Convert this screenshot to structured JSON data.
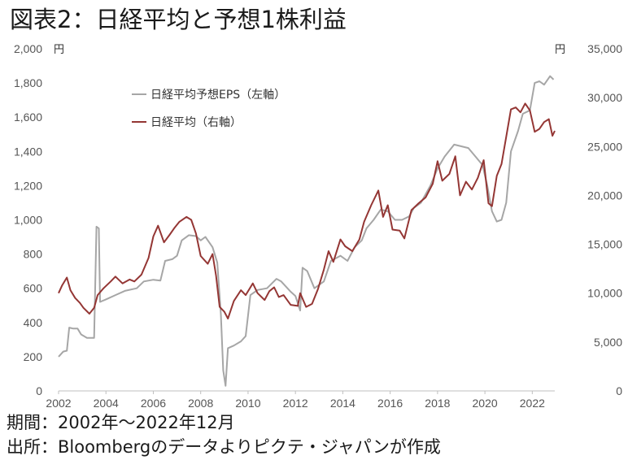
{
  "title": "図表2：日経平均と予想1株利益",
  "footer": {
    "period": "期間：2002年～2022年12月",
    "source": "出所：Bloombergのデータよりピクテ・ジャパンが作成"
  },
  "colors": {
    "eps": "#a6a6a6",
    "nikkei": "#943634",
    "axis": "#bfbfbf"
  },
  "chart_data": {
    "type": "line",
    "x_ticks": [
      "2002",
      "2004",
      "2006",
      "2008",
      "2010",
      "2012",
      "2014",
      "2016",
      "2018",
      "2020",
      "2022"
    ],
    "xlim": [
      2002,
      2022.95
    ],
    "y_left": {
      "unit": "円",
      "ylim": [
        0,
        2000
      ],
      "ticks": [
        "2,000",
        "1,800",
        "1,600",
        "1,400",
        "1,200",
        "1,000",
        "800",
        "600",
        "400",
        "200",
        "0"
      ]
    },
    "y_right": {
      "unit": "円",
      "ylim": [
        0,
        35000
      ],
      "ticks": [
        "35,000",
        "30,000",
        "25,000",
        "20,000",
        "15,000",
        "10,000",
        "5,000",
        "0"
      ]
    },
    "legend": [
      "日経平均予想EPS（左軸）",
      "日経平均（右軸）"
    ],
    "series": [
      {
        "name": "日経平均予想EPS（左軸）",
        "axis": "left",
        "points": [
          [
            2002.0,
            200
          ],
          [
            2002.2,
            230
          ],
          [
            2002.35,
            235
          ],
          [
            2002.45,
            370
          ],
          [
            2002.6,
            365
          ],
          [
            2002.8,
            365
          ],
          [
            2002.95,
            330
          ],
          [
            2003.2,
            310
          ],
          [
            2003.5,
            310
          ],
          [
            2003.6,
            960
          ],
          [
            2003.7,
            950
          ],
          [
            2003.75,
            520
          ],
          [
            2004.0,
            535
          ],
          [
            2004.4,
            560
          ],
          [
            2004.8,
            585
          ],
          [
            2005.3,
            600
          ],
          [
            2005.6,
            640
          ],
          [
            2006.0,
            650
          ],
          [
            2006.3,
            645
          ],
          [
            2006.5,
            760
          ],
          [
            2006.8,
            770
          ],
          [
            2007.0,
            790
          ],
          [
            2007.2,
            880
          ],
          [
            2007.5,
            910
          ],
          [
            2007.8,
            905
          ],
          [
            2008.0,
            880
          ],
          [
            2008.2,
            900
          ],
          [
            2008.5,
            840
          ],
          [
            2008.7,
            750
          ],
          [
            2008.85,
            450
          ],
          [
            2008.95,
            120
          ],
          [
            2009.05,
            30
          ],
          [
            2009.15,
            250
          ],
          [
            2009.4,
            265
          ],
          [
            2009.7,
            290
          ],
          [
            2009.9,
            320
          ],
          [
            2010.1,
            560
          ],
          [
            2010.4,
            590
          ],
          [
            2010.8,
            600
          ],
          [
            2011.2,
            655
          ],
          [
            2011.4,
            640
          ],
          [
            2011.8,
            580
          ],
          [
            2012.0,
            555
          ],
          [
            2012.2,
            470
          ],
          [
            2012.3,
            720
          ],
          [
            2012.5,
            700
          ],
          [
            2012.8,
            600
          ],
          [
            2013.2,
            640
          ],
          [
            2013.5,
            760
          ],
          [
            2013.9,
            790
          ],
          [
            2014.2,
            760
          ],
          [
            2014.5,
            840
          ],
          [
            2014.8,
            880
          ],
          [
            2015.0,
            950
          ],
          [
            2015.3,
            1000
          ],
          [
            2015.6,
            1060
          ],
          [
            2015.9,
            1050
          ],
          [
            2016.2,
            1000
          ],
          [
            2016.5,
            1000
          ],
          [
            2016.8,
            1020
          ],
          [
            2017.0,
            1070
          ],
          [
            2017.3,
            1100
          ],
          [
            2017.7,
            1200
          ],
          [
            2018.0,
            1300
          ],
          [
            2018.3,
            1370
          ],
          [
            2018.7,
            1440
          ],
          [
            2019.0,
            1430
          ],
          [
            2019.3,
            1420
          ],
          [
            2019.6,
            1370
          ],
          [
            2019.9,
            1320
          ],
          [
            2020.1,
            1200
          ],
          [
            2020.3,
            1050
          ],
          [
            2020.5,
            990
          ],
          [
            2020.7,
            1000
          ],
          [
            2020.9,
            1100
          ],
          [
            2021.1,
            1400
          ],
          [
            2021.4,
            1520
          ],
          [
            2021.6,
            1620
          ],
          [
            2021.9,
            1640
          ],
          [
            2022.1,
            1800
          ],
          [
            2022.3,
            1810
          ],
          [
            2022.5,
            1790
          ],
          [
            2022.75,
            1840
          ],
          [
            2022.9,
            1820
          ]
        ]
      },
      {
        "name": "日経平均（右軸）",
        "axis": "right",
        "points": [
          [
            2002.0,
            10000
          ],
          [
            2002.15,
            10800
          ],
          [
            2002.35,
            11600
          ],
          [
            2002.5,
            10300
          ],
          [
            2002.7,
            9500
          ],
          [
            2002.9,
            9000
          ],
          [
            2003.05,
            8500
          ],
          [
            2003.3,
            7900
          ],
          [
            2003.5,
            8500
          ],
          [
            2003.65,
            9800
          ],
          [
            2003.9,
            10500
          ],
          [
            2004.2,
            11200
          ],
          [
            2004.4,
            11700
          ],
          [
            2004.7,
            11000
          ],
          [
            2005.0,
            11400
          ],
          [
            2005.2,
            11200
          ],
          [
            2005.5,
            11900
          ],
          [
            2005.8,
            13600
          ],
          [
            2006.0,
            15800
          ],
          [
            2006.2,
            16900
          ],
          [
            2006.45,
            15200
          ],
          [
            2006.7,
            16000
          ],
          [
            2006.9,
            16700
          ],
          [
            2007.1,
            17300
          ],
          [
            2007.4,
            17800
          ],
          [
            2007.6,
            17500
          ],
          [
            2007.8,
            16100
          ],
          [
            2008.0,
            13800
          ],
          [
            2008.3,
            13000
          ],
          [
            2008.5,
            14000
          ],
          [
            2008.65,
            11800
          ],
          [
            2008.8,
            8600
          ],
          [
            2009.0,
            8100
          ],
          [
            2009.15,
            7400
          ],
          [
            2009.4,
            9200
          ],
          [
            2009.7,
            10300
          ],
          [
            2009.9,
            9800
          ],
          [
            2010.2,
            11000
          ],
          [
            2010.4,
            10000
          ],
          [
            2010.7,
            9300
          ],
          [
            2010.9,
            10200
          ],
          [
            2011.1,
            10600
          ],
          [
            2011.3,
            9600
          ],
          [
            2011.5,
            9800
          ],
          [
            2011.8,
            8800
          ],
          [
            2012.1,
            8700
          ],
          [
            2012.2,
            10000
          ],
          [
            2012.45,
            8600
          ],
          [
            2012.7,
            8900
          ],
          [
            2012.95,
            10400
          ],
          [
            2013.2,
            12400
          ],
          [
            2013.4,
            14300
          ],
          [
            2013.6,
            13200
          ],
          [
            2013.9,
            15500
          ],
          [
            2014.1,
            14800
          ],
          [
            2014.4,
            14300
          ],
          [
            2014.7,
            15500
          ],
          [
            2014.9,
            17300
          ],
          [
            2015.2,
            19000
          ],
          [
            2015.5,
            20500
          ],
          [
            2015.7,
            17800
          ],
          [
            2015.9,
            19000
          ],
          [
            2016.1,
            16500
          ],
          [
            2016.4,
            16400
          ],
          [
            2016.6,
            15600
          ],
          [
            2016.9,
            18500
          ],
          [
            2017.2,
            19200
          ],
          [
            2017.5,
            19800
          ],
          [
            2017.8,
            21200
          ],
          [
            2018.0,
            23500
          ],
          [
            2018.2,
            21500
          ],
          [
            2018.5,
            22200
          ],
          [
            2018.75,
            24000
          ],
          [
            2018.95,
            20000
          ],
          [
            2019.2,
            21400
          ],
          [
            2019.45,
            20600
          ],
          [
            2019.7,
            21800
          ],
          [
            2019.95,
            23600
          ],
          [
            2020.15,
            19200
          ],
          [
            2020.3,
            18900
          ],
          [
            2020.5,
            22000
          ],
          [
            2020.7,
            23200
          ],
          [
            2020.9,
            26000
          ],
          [
            2021.1,
            28800
          ],
          [
            2021.3,
            29000
          ],
          [
            2021.5,
            28500
          ],
          [
            2021.7,
            29400
          ],
          [
            2021.9,
            28700
          ],
          [
            2022.1,
            26500
          ],
          [
            2022.3,
            26800
          ],
          [
            2022.5,
            27500
          ],
          [
            2022.7,
            27800
          ],
          [
            2022.85,
            26100
          ],
          [
            2022.95,
            26600
          ]
        ]
      }
    ]
  }
}
